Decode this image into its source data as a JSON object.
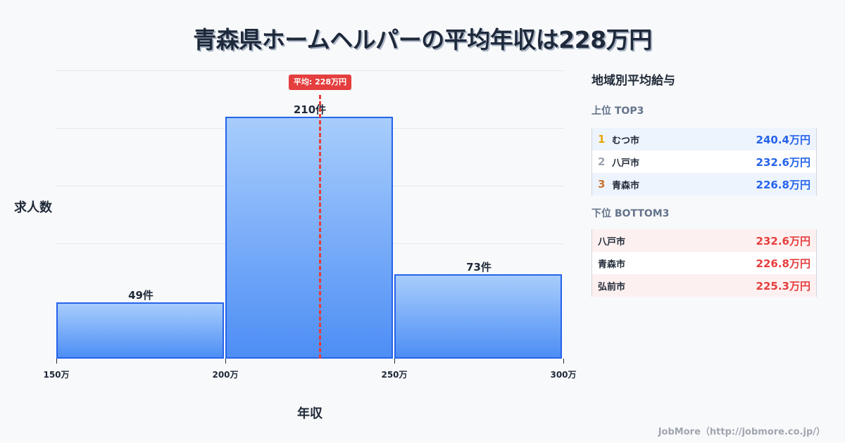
{
  "title": "青森県ホームヘルパーの平均年収は228万円",
  "chart_data": {
    "type": "bar",
    "title": "青森県ホームヘルパーの平均年収は228万円",
    "xlabel": "年収",
    "ylabel": "求人数",
    "categories": [
      "150万-200万",
      "200万-250万",
      "250万-300万"
    ],
    "values": [
      49,
      210,
      73
    ],
    "value_labels": [
      "49件",
      "210件",
      "73件"
    ],
    "x_ticks": [
      "150万",
      "200万",
      "250万",
      "300万"
    ],
    "x_range": [
      150,
      300
    ],
    "ylim": [
      0,
      250
    ],
    "grid": true,
    "average": {
      "value": 228,
      "label": "平均: 228万円",
      "color": "#e53e3e"
    },
    "bar_color": "#4d8ef5",
    "bar_border": "#2563eb"
  },
  "panel": {
    "title": "地域別平均給与",
    "top": {
      "title": "上位 TOP3",
      "rows": [
        {
          "rank": "1",
          "name": "むつ市",
          "value": "240.4万円",
          "rank_color": "#e5a50a"
        },
        {
          "rank": "2",
          "name": "八戸市",
          "value": "232.6万円",
          "rank_color": "#9ca3af"
        },
        {
          "rank": "3",
          "name": "青森市",
          "value": "226.8万円",
          "rank_color": "#c87533"
        }
      ]
    },
    "bottom": {
      "title": "下位 BOTTOM3",
      "rows": [
        {
          "name": "八戸市",
          "value": "232.6万円"
        },
        {
          "name": "青森市",
          "value": "226.8万円"
        },
        {
          "name": "弘前市",
          "value": "225.3万円"
        }
      ]
    }
  },
  "footer": "JobMore（http://jobmore.co.jp/）"
}
